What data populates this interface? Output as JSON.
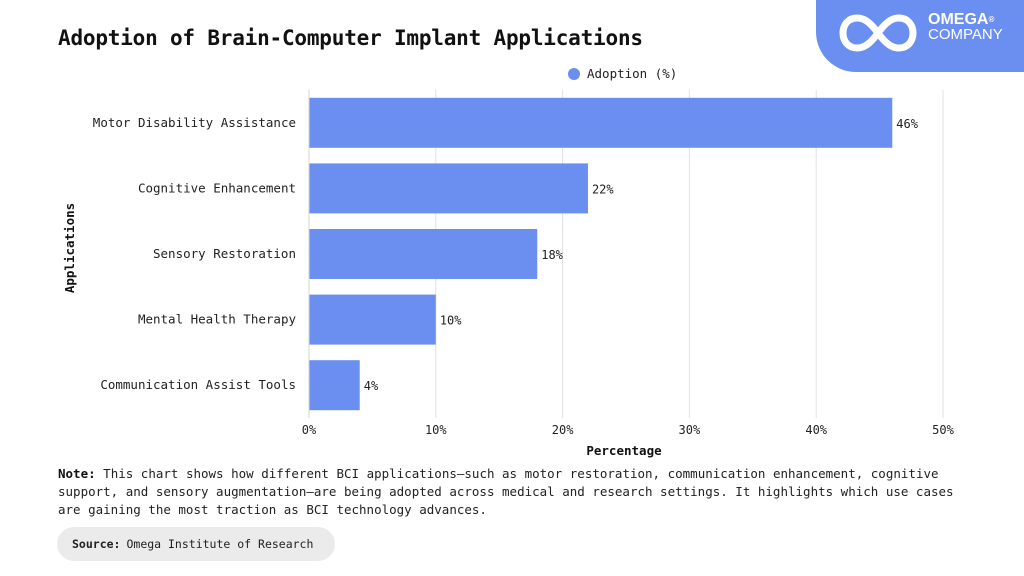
{
  "brand": {
    "name": "OMEGA",
    "sub": "COMPANY",
    "registered": "®",
    "bg_color": "#6a8ff0"
  },
  "chart_data": {
    "type": "bar",
    "orientation": "horizontal",
    "title": "Adoption of Brain-Computer Implant Applications",
    "xlabel": "Percentage",
    "ylabel": "Applications",
    "categories": [
      "Motor Disability Assistance",
      "Cognitive Enhancement",
      "Sensory Restoration",
      "Mental Health Therapy",
      "Communication Assist Tools"
    ],
    "series": [
      {
        "name": "Adoption (%)",
        "values": [
          46,
          22,
          18,
          10,
          4
        ],
        "color": "#6a8ff0"
      }
    ],
    "value_labels": [
      "46%",
      "22%",
      "18%",
      "10%",
      "4%"
    ],
    "xlim": [
      0,
      50
    ],
    "xticks": [
      0,
      10,
      20,
      30,
      40,
      50
    ],
    "xtick_labels": [
      "0%",
      "10%",
      "20%",
      "30%",
      "40%",
      "50%"
    ],
    "grid": "vertical",
    "legend_position": "top"
  },
  "note": {
    "label": "Note:",
    "text": "This chart shows how different BCI applications—such as motor restoration, communication enhancement, cognitive support, and sensory augmentation—are being adopted across medical and research settings. It highlights which use cases are gaining the most traction as BCI technology advances."
  },
  "source": {
    "label": "Source:",
    "text": "Omega Institute of Research"
  }
}
